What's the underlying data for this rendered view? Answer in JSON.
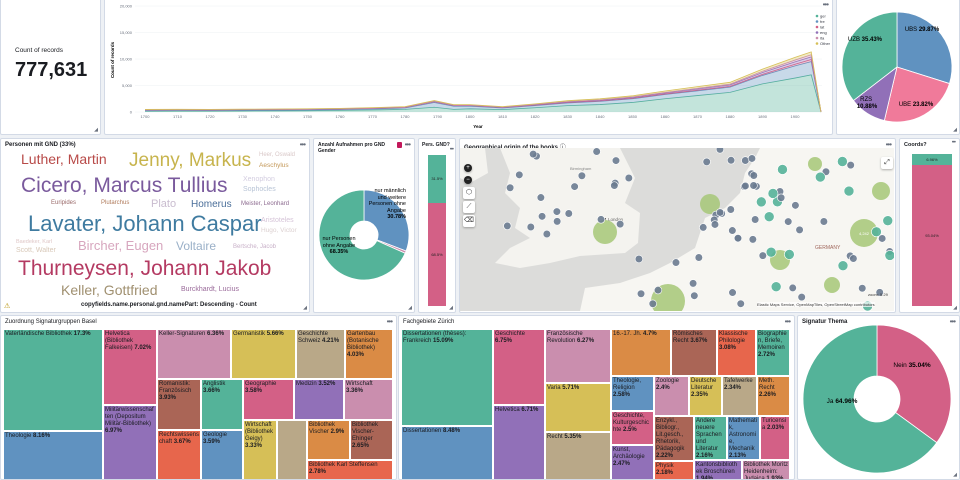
{
  "metric": {
    "label": "Count of records",
    "value": "777,631"
  },
  "colors": {
    "teal": "#54b399",
    "blue": "#6092c0",
    "pink": "#d36086",
    "purple": "#9170b8",
    "lightpink": "#ca8eae",
    "yellow": "#d6bf57",
    "tan": "#b9a888",
    "orange": "#da8b45",
    "brown": "#aa6556",
    "red": "#e7664c"
  },
  "chart_data": [
    {
      "type": "area",
      "stacked": true,
      "xlabel": "Year",
      "ylabel": "Count of records",
      "ylim": [
        0,
        20000
      ],
      "yticks": [
        "0",
        "5,000",
        "10,000",
        "15,000",
        "20,000"
      ],
      "xticks": [
        "1700",
        "1710",
        "1720",
        "1730",
        "1740",
        "1750",
        "1760",
        "1770",
        "1780",
        "1790",
        "1800",
        "1810",
        "1820",
        "1830",
        "1840",
        "1850",
        "1860",
        "1870",
        "1880",
        "1890",
        "1900"
      ],
      "legend_position": "top-right",
      "x": [
        1700,
        1710,
        1720,
        1730,
        1740,
        1750,
        1760,
        1770,
        1780,
        1789,
        1795,
        1800,
        1810,
        1820,
        1830,
        1840,
        1850,
        1860,
        1870,
        1880,
        1890,
        1900,
        1905,
        1908
      ],
      "series": [
        {
          "name": "ger",
          "color": "#54b399",
          "values": [
            150,
            180,
            170,
            200,
            220,
            250,
            300,
            380,
            500,
            900,
            500,
            600,
            450,
            800,
            1200,
            1400,
            1800,
            2500,
            3100,
            3700,
            5300,
            6400,
            7000,
            0
          ]
        },
        {
          "name": "fre",
          "color": "#6092c0",
          "values": [
            100,
            100,
            100,
            110,
            120,
            130,
            150,
            180,
            250,
            900,
            600,
            500,
            300,
            400,
            500,
            600,
            700,
            800,
            900,
            1000,
            1600,
            2300,
            2500,
            0
          ]
        },
        {
          "name": "lat",
          "color": "#d36086",
          "values": [
            150,
            150,
            140,
            140,
            140,
            140,
            130,
            130,
            130,
            150,
            120,
            120,
            100,
            100,
            100,
            100,
            100,
            110,
            120,
            130,
            200,
            300,
            400,
            0
          ]
        },
        {
          "name": "eng",
          "color": "#9170b8",
          "values": [
            20,
            20,
            20,
            20,
            20,
            30,
            30,
            40,
            40,
            60,
            50,
            50,
            50,
            80,
            100,
            120,
            150,
            180,
            220,
            260,
            350,
            450,
            500,
            0
          ]
        },
        {
          "name": "ita",
          "color": "#ca8eae",
          "values": [
            20,
            20,
            20,
            20,
            20,
            20,
            20,
            30,
            30,
            50,
            40,
            40,
            40,
            60,
            80,
            90,
            100,
            120,
            140,
            160,
            250,
            350,
            400,
            0
          ]
        },
        {
          "name": "Other",
          "color": "#d6bf57",
          "values": [
            40,
            40,
            40,
            40,
            40,
            50,
            50,
            60,
            60,
            100,
            80,
            80,
            80,
            100,
            150,
            180,
            200,
            250,
            300,
            350,
            400,
            500,
            550,
            0
          ]
        }
      ]
    },
    {
      "type": "pie",
      "title": "",
      "slices": [
        {
          "label": "UBS",
          "pct": "29.87%",
          "value": 29.87,
          "color": "#6092c0"
        },
        {
          "label": "UBE",
          "pct": "23.82%",
          "value": 23.82,
          "color": "#f07a9a"
        },
        {
          "label": "RZS",
          "pct": "10.88%",
          "value": 10.88,
          "color": "#9170b8"
        },
        {
          "label": "UZB",
          "pct": "35.43%",
          "value": 35.43,
          "color": "#54b399"
        }
      ]
    },
    {
      "type": "pie",
      "title": "Anzahl Aufnahmen pro GND Gender",
      "donut": true,
      "slices": [
        {
          "label": "nur männlich und weitere Personen ohne Angabe",
          "pct": "30.78%",
          "value": 30.78,
          "color": "#6092c0"
        },
        {
          "label": "",
          "pct": "",
          "value": 0.87,
          "color": "#ca8eae"
        },
        {
          "label": "nur Personen ohne Angabe",
          "pct": "68.35%",
          "value": 68.35,
          "color": "#54b399"
        }
      ]
    },
    {
      "type": "bar",
      "title": "Pers. GND?",
      "stacked_percent": true,
      "segments": [
        {
          "label": "31.5%",
          "value": 31.5,
          "color": "#54b399"
        },
        {
          "label": "68.5%",
          "value": 68.5,
          "color": "#d36086"
        }
      ]
    },
    {
      "type": "bar",
      "title": "Coords?",
      "stacked_percent": true,
      "segments": [
        {
          "label": "6.96%",
          "value": 6.96,
          "color": "#54b399"
        },
        {
          "label": "93.04%",
          "value": 93.04,
          "color": "#d36086"
        }
      ]
    },
    {
      "type": "pie",
      "title": "Signatur Thema",
      "donut": true,
      "slices": [
        {
          "label": "Nein",
          "pct": "35.04%",
          "value": 35.04,
          "color": "#d36086"
        },
        {
          "label": "Ja",
          "pct": "64.96%",
          "value": 64.96,
          "color": "#54b399"
        }
      ]
    }
  ],
  "wordcloud": {
    "title": "Personen mit GND (33%)",
    "caption": "copyfields.name.personal.gnd.namePart: Descending - Count",
    "words": [
      "Luther, Martin",
      "Jenny, Markus",
      "Heer, Oswald",
      "Aeschylus",
      "Cicero, Marcus Tullius",
      "Xenophon",
      "Euripides",
      "Plutarchus",
      "Plato",
      "Sophocles",
      "Lavater, Johann Caspar",
      "Aristoteles",
      "Bircher, Eugen",
      "Homerus",
      "Meister, Leonhard",
      "Thurneysen, Johann Jakob",
      "Baedeker, Karl",
      "Hugo, Victor",
      "Scott, Walter",
      "Voltaire",
      "Keller, Gottfried",
      "Bertsche, Jacob",
      "Burckhardt, Lucius"
    ]
  },
  "map": {
    "title": "Geographical origin of the books",
    "places": [
      "Birmingham",
      "London",
      "GERMANY"
    ],
    "cluster_label": "4,242",
    "zoom_text": "zoom: 5.29",
    "attribution": "Elastic Maps Service, OpenMapTiles, OpenStreetMap contributors"
  },
  "treemap_basel": {
    "title": "Zuordnung Signaturgruppen Basel",
    "cells": [
      {
        "label": "Vaterländische Bibliothek",
        "pct": "17.3%"
      },
      {
        "label": "Theologie",
        "pct": "8.16%"
      },
      {
        "label": "Helvetica (Bibliothek Falkeisen)",
        "pct": "7.02%"
      },
      {
        "label": "Militärwissenschaften (Depositum Militär-Bibliothek)",
        "pct": "6.97%"
      },
      {
        "label": "Keller-Signaturen",
        "pct": "6.36%"
      },
      {
        "label": "Germanistik",
        "pct": "5.66%"
      },
      {
        "label": "Geschichte Schweiz",
        "pct": "4.21%"
      },
      {
        "label": "Gartenbau (Botanische Bibliothek)",
        "pct": "4.03%"
      },
      {
        "label": "Romanistik: Französisch",
        "pct": "3.93%"
      },
      {
        "label": "Rechtswissenschaft",
        "pct": "3.67%"
      },
      {
        "label": "Anglistik",
        "pct": "3.66%"
      },
      {
        "label": "Geologie",
        "pct": "3.59%"
      },
      {
        "label": "Geographie",
        "pct": "3.58%"
      },
      {
        "label": "Medizin",
        "pct": "3.52%"
      },
      {
        "label": "Wirtschaft",
        "pct": "3.36%"
      },
      {
        "label": "Wirtschaft (Bibliothek Geigy)",
        "pct": "3.33%"
      },
      {
        "label": "",
        "pct": ""
      },
      {
        "label": "Bibliothek Vischer",
        "pct": "2.9%"
      },
      {
        "label": "Bibliothek Vischer-Ehinger",
        "pct": "2.65%"
      },
      {
        "label": "Bibliothek Karl Steffensen",
        "pct": "2.78%"
      }
    ]
  },
  "treemap_zurich": {
    "title": "Fachgebiete Zürich",
    "cells": [
      {
        "label": "Dissertationen (thèses): Frankreich",
        "pct": "15.09%"
      },
      {
        "label": "Dissertationen",
        "pct": "8.48%"
      },
      {
        "label": "Geschichte",
        "pct": "6.75%"
      },
      {
        "label": "Helvetica",
        "pct": "6.71%"
      },
      {
        "label": "Französische Revolution",
        "pct": "6.27%"
      },
      {
        "label": "Varia",
        "pct": "5.71%"
      },
      {
        "label": "Recht",
        "pct": "5.35%"
      },
      {
        "label": "16.-17. Jh.",
        "pct": "4.7%"
      },
      {
        "label": "Römisches Recht",
        "pct": "3.67%"
      },
      {
        "label": "Klassische Philologie",
        "pct": "3.08%"
      },
      {
        "label": "Biographien, Briefe, Memoiren",
        "pct": "2.72%"
      },
      {
        "label": "Theologie, Religion",
        "pct": "2.58%"
      },
      {
        "label": "Zoologie",
        "pct": "2.4%"
      },
      {
        "label": "Deutsche Literatur",
        "pct": "2.35%"
      },
      {
        "label": "Tafelwerke",
        "pct": "2.34%"
      },
      {
        "label": "Meth. Recht",
        "pct": "2.26%"
      },
      {
        "label": "Geschichte, Kulturgeschichte",
        "pct": "2.5%"
      },
      {
        "label": "Kunst, Archäologie",
        "pct": "2.47%"
      },
      {
        "label": "Enzykl., Bibliogr., Lit.gesch., Rhetorik, Pädagogik",
        "pct": "2.22%"
      },
      {
        "label": "Physik",
        "pct": "2.18%"
      },
      {
        "label": "Andere neuere Sprachen und Literatur",
        "pct": "2.16%"
      },
      {
        "label": "Mathematik, Astronomie, Mechanik",
        "pct": "2.13%"
      },
      {
        "label": "Turicensia",
        "pct": "2.03%"
      },
      {
        "label": "Kantonsbibliothek Broschüren",
        "pct": "1.94%"
      },
      {
        "label": "Bibliothek Moritz Heidenheim: Judaica",
        "pct": "1.93%"
      }
    ]
  }
}
